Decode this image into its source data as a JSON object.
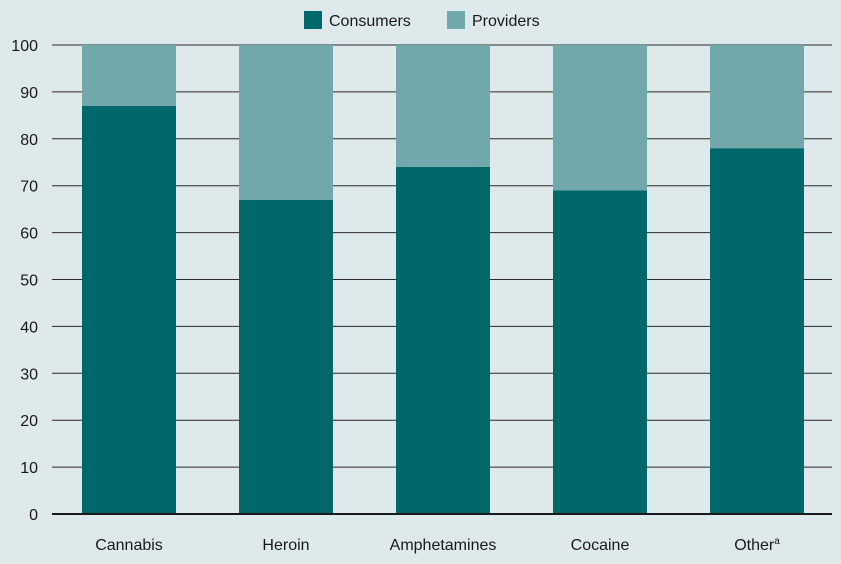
{
  "chart_data": {
    "type": "bar",
    "stacked": true,
    "categories": [
      "Cannabis",
      "Heroin",
      "Amphetamines",
      "Cocaine",
      "Other"
    ],
    "category_superscripts": [
      "",
      "",
      "",
      "",
      "a"
    ],
    "series": [
      {
        "name": "Consumers",
        "color": "#00676a",
        "values": [
          87,
          67,
          74,
          69,
          78
        ]
      },
      {
        "name": "Providers",
        "color": "#72a8ac",
        "values": [
          13,
          33,
          26,
          31,
          22
        ]
      }
    ],
    "ylim": [
      0,
      100
    ],
    "yticks": [
      0,
      10,
      20,
      30,
      40,
      50,
      60,
      70,
      80,
      90,
      100
    ],
    "grid": true,
    "legend_position": "top-center",
    "xlabel": "",
    "ylabel": "",
    "title": ""
  }
}
